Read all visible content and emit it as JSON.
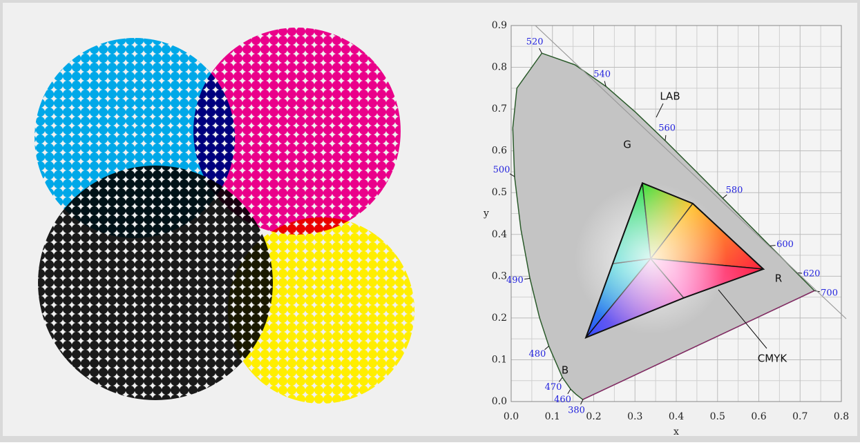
{
  "chart_data": {
    "type": "chromaticity",
    "xlabel": "x",
    "ylabel": "y",
    "xlim": [
      0,
      0.8
    ],
    "ylim": [
      0,
      0.9
    ],
    "xticks": [
      {
        "value": 0,
        "label": "0.0"
      },
      {
        "value": 0.1,
        "label": "0.1"
      },
      {
        "value": 0.2,
        "label": "0.2"
      },
      {
        "value": 0.3,
        "label": "0.3"
      },
      {
        "value": 0.4,
        "label": "0.4"
      },
      {
        "value": 0.5,
        "label": "0.5"
      },
      {
        "value": 0.6,
        "label": "0.6"
      },
      {
        "value": 0.7,
        "label": "0.7"
      },
      {
        "value": 0.8,
        "label": "0.8"
      }
    ],
    "yticks": [
      {
        "value": 0,
        "label": "0.0"
      },
      {
        "value": 0.1,
        "label": "0.1"
      },
      {
        "value": 0.2,
        "label": "0.2"
      },
      {
        "value": 0.3,
        "label": "0.3"
      },
      {
        "value": 0.4,
        "label": "0.4"
      },
      {
        "value": 0.5,
        "label": "0.5"
      },
      {
        "value": 0.6,
        "label": "0.6"
      },
      {
        "value": 0.7,
        "label": "0.7"
      },
      {
        "value": 0.8,
        "label": "0.8"
      },
      {
        "value": 0.9,
        "label": "0.9"
      }
    ],
    "grid": true,
    "locus": {
      "wavelength": [
        380,
        null,
        null,
        460,
        470,
        480,
        null,
        490,
        null,
        500,
        null,
        null,
        520,
        null,
        540,
        null,
        560,
        null,
        580,
        null,
        600,
        null,
        620,
        null,
        700
      ],
      "x": [
        0.1741,
        0.1733,
        0.1566,
        0.144,
        0.1241,
        0.0913,
        0.0687,
        0.0454,
        0.0235,
        0.0082,
        0.0039,
        0.0139,
        0.0743,
        0.1547,
        0.2296,
        0.3016,
        0.3731,
        0.4441,
        0.5125,
        0.5752,
        0.627,
        0.6658,
        0.6915,
        0.719,
        0.7347
      ],
      "y": [
        0.005,
        0.0048,
        0.0177,
        0.0297,
        0.0578,
        0.1327,
        0.2007,
        0.295,
        0.4127,
        0.5384,
        0.6548,
        0.7502,
        0.8338,
        0.8059,
        0.7543,
        0.6923,
        0.6245,
        0.5547,
        0.4866,
        0.4242,
        0.3725,
        0.334,
        0.3083,
        0.2809,
        0.2653
      ]
    },
    "gamut": {
      "x": [
        0.181,
        0.246,
        0.318,
        0.44,
        0.611,
        0.418
      ],
      "y": [
        0.153,
        0.33,
        0.523,
        0.474,
        0.317,
        0.248
      ]
    },
    "center": {
      "x": 0.338,
      "y": 0.342
    },
    "annotations": [
      "LAB",
      "G",
      "R",
      "B",
      "CMYK"
    ]
  }
}
